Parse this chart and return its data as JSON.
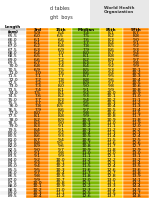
{
  "title_line1": "d tables",
  "title_line2": "ght  boys",
  "header_row": [
    "Length\n(cm)",
    "3rd",
    "15th",
    "Median",
    "85th",
    "97th"
  ],
  "col_colors_header": [
    "#cccccc",
    "#ff8800",
    "#ffcc00",
    "#7cb800",
    "#ffcc00",
    "#ff8800"
  ],
  "col_colors_data": [
    "#ffffff",
    "#ff8800",
    "#ffcc00",
    "#7cb800",
    "#ffcc00",
    "#ff8800"
  ],
  "rows": [
    [
      "65.0",
      "5.9",
      "6.4",
      "7.4",
      "8.1",
      "8.7"
    ],
    [
      "65.5",
      "6.0",
      "6.5",
      "7.5",
      "8.2",
      "8.8"
    ],
    [
      "66.0",
      "6.1",
      "6.6",
      "7.6",
      "8.3",
      "9.0"
    ],
    [
      "66.5",
      "6.1",
      "6.7",
      "7.7",
      "8.4",
      "9.1"
    ],
    [
      "67.0",
      "6.2",
      "6.8",
      "7.8",
      "8.5",
      "9.2"
    ],
    [
      "67.5",
      "6.3",
      "6.9",
      "7.9",
      "8.6",
      "9.3"
    ],
    [
      "68.0",
      "6.4",
      "7.0",
      "8.0",
      "8.7",
      "9.4"
    ],
    [
      "68.5",
      "6.5",
      "7.1",
      "8.1",
      "8.8",
      "9.6"
    ],
    [
      "69.0",
      "6.6",
      "7.2",
      "8.2",
      "8.9",
      "9.7"
    ],
    [
      "69.5",
      "6.7",
      "7.3",
      "8.3",
      "9.1",
      "9.8"
    ],
    [
      "70.0",
      "6.8",
      "7.4",
      "8.4",
      "9.2",
      "9.9"
    ],
    [
      "70.5",
      "6.9",
      "7.5",
      "8.5",
      "9.3",
      "10.1"
    ],
    [
      "71.0",
      "7.0",
      "7.6",
      "8.6",
      "9.4",
      "10.2"
    ],
    [
      "71.5",
      "7.1",
      "7.7",
      "8.7",
      "9.5",
      "10.3"
    ],
    [
      "72.0",
      "7.2",
      "7.8",
      "8.8",
      "9.6",
      "10.4"
    ],
    [
      "72.5",
      "7.2",
      "7.9",
      "8.9",
      "9.7",
      "10.5"
    ],
    [
      "73.0",
      "7.3",
      "8.0",
      "9.0",
      "9.8",
      "10.6"
    ],
    [
      "73.5",
      "7.4",
      "8.1",
      "9.1",
      "9.9",
      "10.8"
    ],
    [
      "74.0",
      "7.5",
      "8.1",
      "9.2",
      "10.0",
      "10.9"
    ],
    [
      "74.5",
      "7.6",
      "8.2",
      "9.3",
      "10.1",
      "11.0"
    ],
    [
      "75.0",
      "7.7",
      "8.3",
      "9.4",
      "10.2",
      "11.1"
    ],
    [
      "75.5",
      "7.7",
      "8.4",
      "9.5",
      "10.3",
      "11.2"
    ],
    [
      "76.0",
      "7.8",
      "8.5",
      "9.6",
      "10.4",
      "11.3"
    ],
    [
      "76.5",
      "7.9",
      "8.6",
      "9.7",
      "10.5",
      "11.4"
    ],
    [
      "77.0",
      "8.0",
      "8.7",
      "9.8",
      "10.6",
      "11.5"
    ],
    [
      "77.5",
      "8.1",
      "8.8",
      "9.9",
      "10.8",
      "11.7"
    ],
    [
      "78.0",
      "8.2",
      "8.9",
      "10.0",
      "10.9",
      "11.8"
    ],
    [
      "78.5",
      "8.3",
      "9.0",
      "10.1",
      "11.0",
      "11.9"
    ],
    [
      "79.0",
      "8.3",
      "9.1",
      "10.2",
      "11.1",
      "12.0"
    ],
    [
      "79.5",
      "8.4",
      "9.1",
      "10.3",
      "11.2",
      "12.2"
    ],
    [
      "80.0",
      "8.5",
      "9.2",
      "10.4",
      "11.3",
      "12.3"
    ],
    [
      "80.5",
      "8.6",
      "9.3",
      "10.5",
      "11.4",
      "12.4"
    ],
    [
      "81.0",
      "8.7",
      "9.4",
      "10.6",
      "11.5",
      "12.5"
    ],
    [
      "81.5",
      "8.8",
      "9.5",
      "10.7",
      "11.6",
      "12.6"
    ],
    [
      "82.0",
      "8.9",
      "9.6",
      "10.8",
      "11.7",
      "12.7"
    ],
    [
      "82.5",
      "9.0",
      "9.7",
      "10.9",
      "11.8",
      "12.9"
    ],
    [
      "83.0",
      "9.1",
      "9.8",
      "11.0",
      "12.0",
      "13.0"
    ],
    [
      "83.5",
      "9.1",
      "9.9",
      "11.1",
      "12.1",
      "13.1"
    ],
    [
      "84.0",
      "9.2",
      "10.0",
      "11.2",
      "12.2",
      "13.2"
    ],
    [
      "84.5",
      "9.3",
      "10.1",
      "11.3",
      "12.3",
      "13.4"
    ],
    [
      "85.0",
      "9.4",
      "10.2",
      "11.5",
      "12.4",
      "13.5"
    ],
    [
      "85.5",
      "9.5",
      "10.3",
      "11.6",
      "12.6",
      "13.6"
    ],
    [
      "86.0",
      "9.7",
      "10.4",
      "11.7",
      "12.7",
      "13.8"
    ],
    [
      "86.5",
      "9.8",
      "10.5",
      "11.8",
      "12.8",
      "13.9"
    ],
    [
      "87.0",
      "9.9",
      "10.7",
      "12.0",
      "13.0",
      "14.1"
    ],
    [
      "87.5",
      "10.0",
      "10.8",
      "12.1",
      "13.1",
      "14.2"
    ],
    [
      "88.0",
      "10.1",
      "10.9",
      "12.2",
      "13.3",
      "14.4"
    ],
    [
      "88.5",
      "10.2",
      "11.0",
      "12.3",
      "13.4",
      "14.5"
    ],
    [
      "89.0",
      "10.3",
      "11.1",
      "12.5",
      "13.5",
      "14.7"
    ],
    [
      "89.5",
      "10.4",
      "11.2",
      "12.6",
      "13.7",
      "14.8"
    ]
  ],
  "bg_color": "#ffffff",
  "font_size": 3.2,
  "header_font_size": 3.0
}
